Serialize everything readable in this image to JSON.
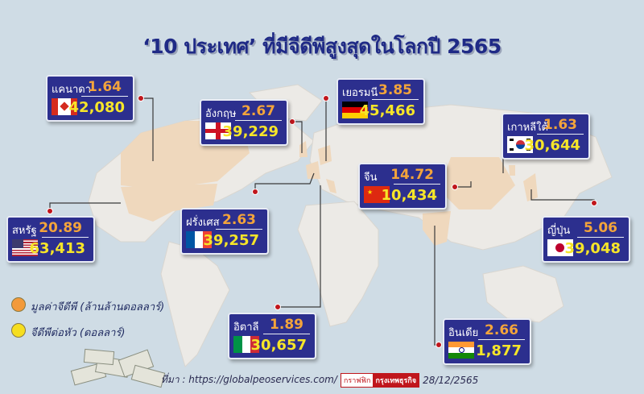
{
  "title": "‘10 ประเทศ’ ที่มีจีดีพีสูงสุดในโลกปี 2565",
  "colors": {
    "box": "#2c2f8e",
    "gdp": "#f3a43b",
    "per_capita": "#f6e529",
    "highlight_land": "#efd8bd"
  },
  "countries": [
    {
      "name": "แคนาดา",
      "gdp": "1.64",
      "per_capita": "42,080",
      "flag": "canada-flag"
    },
    {
      "name": "อังกฤษ",
      "gdp": "2.67",
      "per_capita": "39,229",
      "flag": "england-flag"
    },
    {
      "name": "เยอรมนี",
      "gdp": "3.85",
      "per_capita": "45,466",
      "flag": "germany-flag"
    },
    {
      "name": "เกาหลีใต้",
      "gdp": "1.63",
      "per_capita": "30,644",
      "flag": "south-korea-flag"
    },
    {
      "name": "จีน",
      "gdp": "14.72",
      "per_capita": "10,434",
      "flag": "china-flag"
    },
    {
      "name": "สหรัฐ",
      "gdp": "20.89",
      "per_capita": "63,413",
      "flag": "usa-flag"
    },
    {
      "name": "ฝรั่งเศส",
      "gdp": "2.63",
      "per_capita": "39,257",
      "flag": "france-flag"
    },
    {
      "name": "ญี่ปุ่น",
      "gdp": "5.06",
      "per_capita": "39,048",
      "flag": "japan-flag"
    },
    {
      "name": "อิตาลี",
      "gdp": "1.89",
      "per_capita": "30,657",
      "flag": "italy-flag"
    },
    {
      "name": "อินเดีย",
      "gdp": "2.66",
      "per_capita": "1,877",
      "flag": "india-flag"
    }
  ],
  "legend": {
    "gdp": "มูลค่าจีดีพี (ล้านล้านดอลลาร์)",
    "per_capita": "จีดีพีต่อหัว (ดอลลาร์)"
  },
  "source": {
    "label": "ที่มา : https://globalpeoservices.com/",
    "badge_left": "กราฟฟิก",
    "badge_right": "กรุงเทพธุรกิจ",
    "date": "28/12/2565"
  }
}
